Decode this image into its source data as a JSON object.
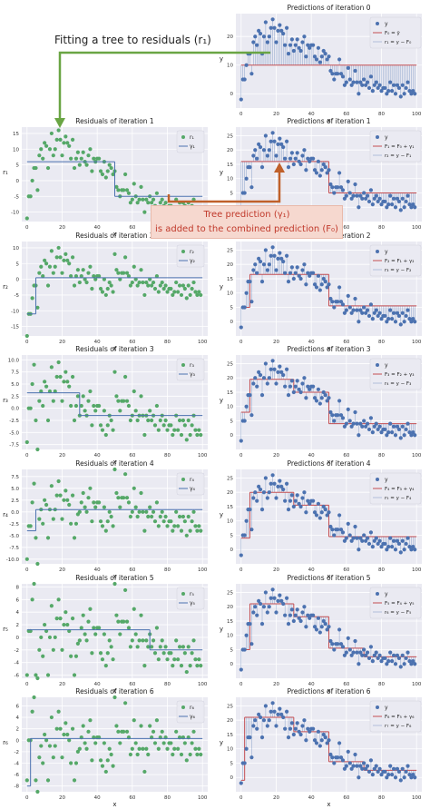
{
  "annotations": {
    "top_text": "Fitting a tree to residuals (r₁)",
    "box_line1": "Tree prediction (γ₁)",
    "box_line2": "is added to the combined prediction (F₀)",
    "green": "#6aa544",
    "orange": "#c0602a"
  },
  "colors": {
    "bg": "#eaeaf2",
    "grid": "#ffffff",
    "residual_points": "#55a868",
    "target_points": "#4c72b0",
    "tree_line": "#4c72b0",
    "prediction_line": "#c44e52"
  },
  "chart_data": {
    "x": [
      0,
      1,
      2,
      3,
      4,
      5,
      6,
      7,
      8,
      9,
      10,
      11,
      12,
      13,
      14,
      15,
      16,
      17,
      18,
      19,
      20,
      21,
      22,
      23,
      24,
      25,
      26,
      27,
      28,
      29,
      30,
      31,
      32,
      33,
      34,
      35,
      36,
      37,
      38,
      39,
      40,
      41,
      42,
      43,
      44,
      45,
      46,
      47,
      48,
      49,
      50,
      51,
      52,
      53,
      54,
      55,
      56,
      57,
      58,
      59,
      60,
      61,
      62,
      63,
      64,
      65,
      66,
      67,
      68,
      69,
      70,
      71,
      72,
      73,
      74,
      75,
      76,
      77,
      78,
      79,
      80,
      81,
      82,
      83,
      84,
      85,
      86,
      87,
      88,
      89,
      90,
      91,
      92,
      93,
      94,
      95,
      96,
      97,
      98,
      99
    ],
    "y": [
      -2,
      5,
      5,
      10,
      14,
      14,
      7,
      18,
      20,
      17,
      22,
      21,
      14,
      20,
      25,
      18,
      20,
      23,
      26,
      23,
      18,
      22,
      24,
      22,
      21,
      17,
      23,
      14,
      17,
      19,
      15,
      17,
      19,
      16,
      15,
      18,
      20,
      13,
      17,
      16,
      17,
      17,
      13,
      12,
      16,
      11,
      13,
      15,
      14,
      12,
      13,
      8,
      7,
      5,
      7,
      7,
      12,
      7,
      6,
      3,
      4,
      9,
      5,
      3,
      4,
      8,
      4,
      0,
      4,
      3,
      5,
      3,
      4,
      2,
      6,
      1,
      3,
      4,
      2,
      3,
      1,
      2,
      2,
      0,
      1,
      4,
      1,
      3,
      0,
      3,
      2,
      -1,
      3,
      0,
      2,
      4,
      1,
      0,
      1,
      0
    ],
    "residuals": [
      -12,
      -5,
      -5,
      0,
      4,
      4,
      -3,
      8,
      10,
      7,
      12,
      11,
      4,
      10,
      15,
      8,
      10,
      13,
      16,
      13,
      8,
      12,
      14,
      12,
      11,
      7,
      13,
      4,
      7,
      9,
      5,
      7,
      9,
      6,
      5,
      8,
      10,
      3,
      7,
      6,
      7,
      7,
      3,
      2,
      6,
      1,
      3,
      5,
      4,
      2,
      3,
      -2,
      -3,
      -5,
      -3,
      -3,
      2,
      -3,
      -4,
      -7,
      -6,
      -1,
      -5,
      -7,
      -6,
      -2,
      -6,
      -10,
      -6,
      -7,
      -5,
      -7,
      -6,
      -8,
      -4,
      -9,
      -7,
      -6,
      -8,
      -7,
      -9,
      -8,
      -8,
      -10,
      -9,
      -6,
      -9,
      -7,
      -10,
      -7,
      -8,
      -11,
      -7,
      -10,
      -8,
      -6,
      -9,
      -10,
      -9,
      -10
    ],
    "iterations": [
      {
        "left_title": "",
        "right_title": "Predictions of iteration 0",
        "right_legend": [
          "y",
          "F₀ = ȳ",
          "r₁ = y − F₀"
        ],
        "prediction": [
          {
            "x0": 0,
            "x1": 100,
            "v": 10
          }
        ],
        "right_ylim": [
          -5,
          28
        ],
        "right_yticks": [
          0,
          10,
          20
        ]
      },
      {
        "left_title": "Residuals of iteration 1",
        "left_legend": [
          "r₁",
          "γ₁"
        ],
        "left_ylabel": "r₁",
        "residual_key": "r1",
        "tree": [
          {
            "x0": 0,
            "x1": 50,
            "v": 6
          },
          {
            "x0": 50,
            "x1": 100,
            "v": -5
          }
        ],
        "left_ylim": [
          -13,
          17
        ],
        "left_yticks": [
          -10,
          -5,
          0,
          5,
          10,
          15
        ],
        "right_title": "Predictions of iteration 1",
        "right_legend": [
          "y",
          "F₁ = F₀ + γ₁",
          "r₂ = y − F₁"
        ],
        "prediction": [
          {
            "x0": 0,
            "x1": 50,
            "v": 16
          },
          {
            "x0": 50,
            "x1": 100,
            "v": 5
          }
        ],
        "right_ylim": [
          -5,
          28
        ],
        "right_yticks": [
          0,
          5,
          10,
          15,
          20,
          25
        ]
      },
      {
        "left_title": "Residuals of iteration 2",
        "left_legend": [
          "r₂",
          "γ₂"
        ],
        "left_ylabel": "r₂",
        "residual_key": "r2",
        "tree": [
          {
            "x0": 0,
            "x1": 5,
            "v": -11
          },
          {
            "x0": 5,
            "x1": 100,
            "v": 0.5
          }
        ],
        "left_ylim": [
          -18,
          12
        ],
        "left_yticks": [
          -15,
          -10,
          -5,
          0,
          5,
          10
        ],
        "right_title": "Predictions of iteration 2",
        "right_legend": [
          "y",
          "F₂ = F₁ + γ₂",
          "r₃ = y − F₂"
        ],
        "prediction": [
          {
            "x0": 0,
            "x1": 5,
            "v": 5
          },
          {
            "x0": 5,
            "x1": 50,
            "v": 16.5
          },
          {
            "x0": 50,
            "x1": 100,
            "v": 5.5
          }
        ],
        "right_ylim": [
          -5,
          28
        ],
        "right_yticks": [
          0,
          5,
          10,
          15,
          20,
          25
        ]
      },
      {
        "left_title": "Residuals of iteration 3",
        "left_legend": [
          "r₃",
          "γ₃"
        ],
        "left_ylabel": "r₃",
        "residual_key": "r3",
        "tree": [
          {
            "x0": 0,
            "x1": 30,
            "v": 3.2
          },
          {
            "x0": 30,
            "x1": 100,
            "v": -1.5
          }
        ],
        "left_ylim": [
          -8.5,
          11
        ],
        "left_yticks": [
          -7.5,
          -5.0,
          -2.5,
          0.0,
          2.5,
          5.0,
          7.5,
          10.0
        ],
        "right_title": "Predictions of iteration 3",
        "right_legend": [
          "y",
          "F₃ = F₂ + γ₃",
          "r₄ = y − F₃"
        ],
        "prediction": [
          {
            "x0": 0,
            "x1": 5,
            "v": 8
          },
          {
            "x0": 5,
            "x1": 30,
            "v": 19.5
          },
          {
            "x0": 30,
            "x1": 50,
            "v": 15
          },
          {
            "x0": 50,
            "x1": 100,
            "v": 4
          }
        ],
        "right_ylim": [
          -5,
          28
        ],
        "right_yticks": [
          0,
          5,
          10,
          15,
          20,
          25
        ]
      },
      {
        "left_title": "Residuals of iteration 4",
        "left_legend": [
          "r₄",
          "γ₄"
        ],
        "left_ylabel": "r₄",
        "residual_key": "r4",
        "tree": [
          {
            "x0": 0,
            "x1": 5,
            "v": -4
          },
          {
            "x0": 5,
            "x1": 100,
            "v": 0.5
          }
        ],
        "left_ylim": [
          -11,
          9
        ],
        "left_yticks": [
          -10.0,
          -7.5,
          -5.0,
          -2.5,
          0.0,
          2.5,
          5.0,
          7.5
        ],
        "right_title": "Predictions of iteration 4",
        "right_legend": [
          "y",
          "F₄ = F₃ + γ₄",
          "r₅ = y − F₄"
        ],
        "prediction": [
          {
            "x0": 0,
            "x1": 5,
            "v": 4
          },
          {
            "x0": 5,
            "x1": 30,
            "v": 20
          },
          {
            "x0": 30,
            "x1": 50,
            "v": 15.5
          },
          {
            "x0": 50,
            "x1": 100,
            "v": 4.5
          }
        ],
        "right_ylim": [
          -5,
          28
        ],
        "right_yticks": [
          0,
          5,
          10,
          15,
          20,
          25
        ]
      },
      {
        "left_title": "Residuals of iteration 5",
        "left_legend": [
          "r₅",
          "γ₅"
        ],
        "left_ylabel": "r₅",
        "residual_key": "r5",
        "tree": [
          {
            "x0": 0,
            "x1": 70,
            "v": 1.2
          },
          {
            "x0": 70,
            "x1": 100,
            "v": -2
          }
        ],
        "left_ylim": [
          -6.5,
          8.5
        ],
        "left_yticks": [
          -6,
          -4,
          -2,
          0,
          2,
          4,
          6,
          8
        ],
        "right_title": "Predictions of iteration 5",
        "right_legend": [
          "y",
          "F₅ = F₄ + γ₅",
          "r₆ = y − F₅"
        ],
        "prediction": [
          {
            "x0": 0,
            "x1": 5,
            "v": 5
          },
          {
            "x0": 5,
            "x1": 30,
            "v": 21
          },
          {
            "x0": 30,
            "x1": 50,
            "v": 16.5
          },
          {
            "x0": 50,
            "x1": 70,
            "v": 5.5
          },
          {
            "x0": 70,
            "x1": 100,
            "v": 2.5
          }
        ],
        "right_ylim": [
          -5,
          28
        ],
        "right_yticks": [
          0,
          5,
          10,
          15,
          20,
          25
        ]
      },
      {
        "left_title": "Residuals of iteration 6",
        "left_legend": [
          "r₆",
          "γ₆"
        ],
        "left_ylabel": "r₆",
        "residual_key": "r6",
        "tree": [
          {
            "x0": 0,
            "x1": 2,
            "v": -8
          },
          {
            "x0": 2,
            "x1": 100,
            "v": 0.3
          }
        ],
        "left_ylim": [
          -9,
          7.5
        ],
        "left_yticks": [
          -8,
          -6,
          -4,
          -2,
          0,
          2,
          4,
          6
        ],
        "right_title": "Predictions of iteration 6",
        "right_legend": [
          "y",
          "F₆ = F₅ + γ₆",
          "r₇ = y − F₆"
        ],
        "prediction": [
          {
            "x0": 0,
            "x1": 2,
            "v": -1
          },
          {
            "x0": 2,
            "x1": 30,
            "v": 21
          },
          {
            "x0": 30,
            "x1": 50,
            "v": 16
          },
          {
            "x0": 50,
            "x1": 70,
            "v": 5.5
          },
          {
            "x0": 70,
            "x1": 100,
            "v": 2.5
          }
        ],
        "right_ylim": [
          -5,
          28
        ],
        "right_yticks": [
          0,
          5,
          10,
          15,
          20,
          25
        ]
      }
    ],
    "xlim": [
      -3,
      103
    ],
    "xticks": [
      0,
      20,
      40,
      60,
      80,
      100
    ],
    "xlabel": "x",
    "right_ylabel": "y"
  }
}
